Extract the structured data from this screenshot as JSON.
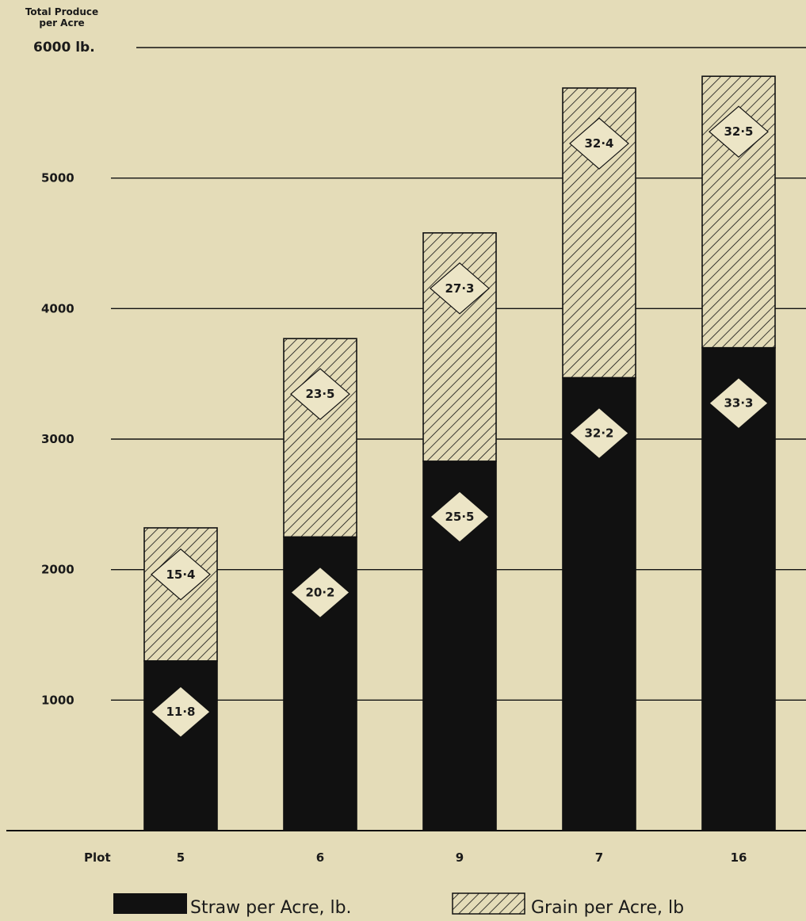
{
  "chart_data": {
    "type": "bar",
    "stacked": true,
    "ylabel": "Total Produce per Acre",
    "ylabel_lines": [
      "Total Produce",
      "per Acre"
    ],
    "ylim": [
      0,
      6000
    ],
    "yticks": [
      1000,
      2000,
      3000,
      4000,
      5000,
      6000
    ],
    "ytick_labels": [
      "1000",
      "2000",
      "3000",
      "4000",
      "5000",
      "6000 lb."
    ],
    "xlabel": "Plot",
    "categories": [
      "5",
      "6",
      "9",
      "7",
      "16"
    ],
    "grid": true,
    "legend_position": "bottom",
    "series": [
      {
        "name": "Straw per Acre, lb.",
        "values": [
          1300,
          2250,
          2830,
          3470,
          3700
        ],
        "labels": [
          "11·8",
          "20·2",
          "25·5",
          "32·2",
          "33·3"
        ],
        "color": "#111111",
        "fill": "solid"
      },
      {
        "name": "Grain per Acre, lb",
        "values": [
          1020,
          1520,
          1750,
          2220,
          2080
        ],
        "labels": [
          "15·4",
          "23·5",
          "27·3",
          "32·4",
          "32·5"
        ],
        "color": "#111111",
        "fill": "hatched"
      }
    ]
  },
  "colors": {
    "background": "#e4dcb8",
    "ink": "#111111",
    "label_box": "#ece5c6"
  }
}
